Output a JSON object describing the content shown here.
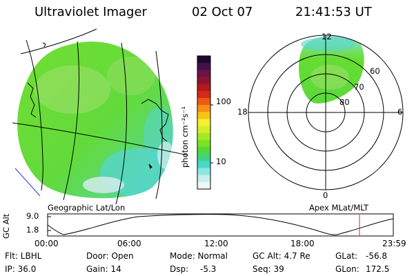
{
  "header": {
    "instrument": "Ultraviolet Imager",
    "date": "02 Oct 07",
    "time": "21:41:53 UT"
  },
  "colors": {
    "aurora_main": "#66dd33",
    "aurora_light": "#aee07a",
    "aurora_cyan": "#55d6d0",
    "aurora_pale": "#d8eef0",
    "coastline": "#000000",
    "terminator": "#2233dd",
    "marker": "#dd2222"
  },
  "colorbar": {
    "unit_label": "photon cm⁻²s⁻¹",
    "tick_labels": [
      "100",
      "10"
    ],
    "scale": "log",
    "colors_top_to_bottom": [
      "#1a0a30",
      "#44104a",
      "#6a1448",
      "#8c1433",
      "#b01a1a",
      "#d42a1a",
      "#ee5a14",
      "#f59214",
      "#f7c418",
      "#f5f030",
      "#d2f02a",
      "#a4ea22",
      "#7ae222",
      "#52da3a",
      "#3fd484",
      "#46d8c8",
      "#8ee6e2",
      "#c8eeee",
      "#eef6f6"
    ]
  },
  "geo_panel": {
    "label": "Geographic Lat/Lon"
  },
  "polar_panel": {
    "label": "Apex MLat/MLT",
    "mlt_labels": [
      "12",
      "18",
      "6",
      "0"
    ],
    "mlat_labels": [
      "60",
      "70",
      "80"
    ]
  },
  "altitude_panel": {
    "axis_title": "GC Alt",
    "y_ticks": [
      "9.0",
      "1.8"
    ],
    "x_ticks": [
      "00:00",
      "06:00",
      "12:00",
      "18:00",
      "23:59"
    ]
  },
  "footer": {
    "flt": "Flt: LBHL",
    "ip": "IP: 36.0",
    "door": "Door: Open",
    "gain": "Gain: 14",
    "mode": "Mode: Normal",
    "dsp_label": "Dsp:",
    "dsp_value": "-5.3",
    "gc_alt": "GC Alt: 4.7 Re",
    "seq": "Seq: 39",
    "glat_label": "GLat:",
    "glat_value": "-56.8",
    "glon_label": "GLon:",
    "glon_value": "172.5"
  }
}
